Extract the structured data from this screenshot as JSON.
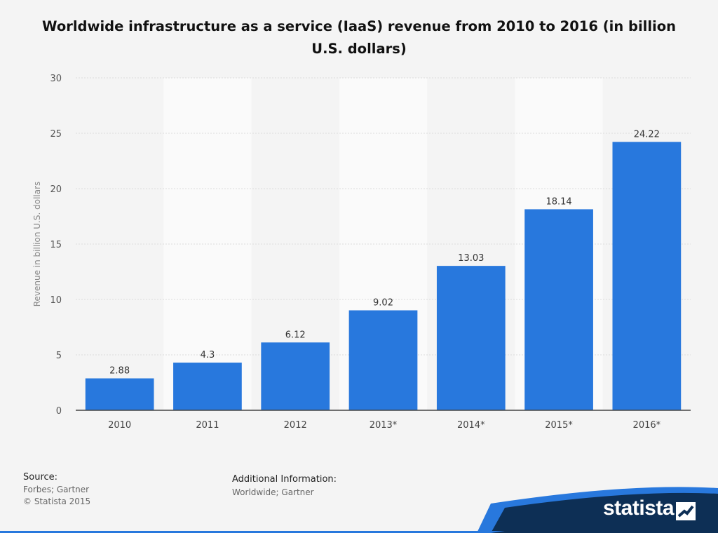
{
  "chart_data": {
    "type": "bar",
    "title": "Worldwide infrastructure as a service (IaaS) revenue from 2010 to 2016 (in billion U.S. dollars)",
    "xlabel": "",
    "ylabel": "Revenue in billion U.S. dollars",
    "categories": [
      "2010",
      "2011",
      "2012",
      "2013*",
      "2014*",
      "2015*",
      "2016*"
    ],
    "values": [
      2.88,
      4.3,
      6.12,
      9.02,
      13.03,
      18.14,
      24.22
    ],
    "value_labels": [
      "2.88",
      "4.3",
      "6.12",
      "9.02",
      "13.03",
      "18.14",
      "24.22"
    ],
    "ylim": [
      0,
      30
    ],
    "yticks": [
      "0",
      "5",
      "10",
      "15",
      "20",
      "25",
      "30"
    ],
    "grid": true,
    "bar_color": "#2878dd"
  },
  "footer": {
    "source_label": "Source:",
    "source_lines": [
      "Forbes; Gartner",
      "© Statista 2015"
    ],
    "info_label": "Additional Information:",
    "info_line": "Worldwide; Gartner",
    "brand": "statista"
  },
  "colors": {
    "accent": "#2878dd",
    "banner": "#0d2f55",
    "banner_stripe": "#2878dd"
  }
}
